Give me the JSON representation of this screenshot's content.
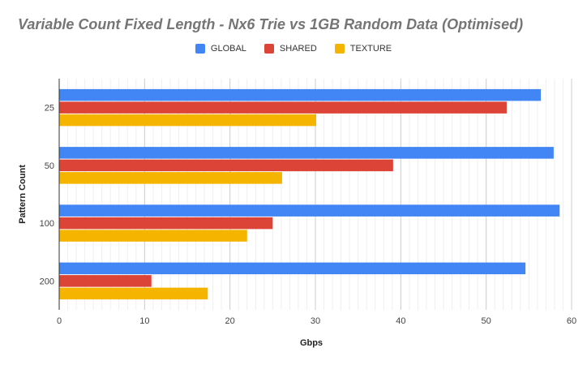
{
  "chart_data": {
    "type": "bar",
    "orientation": "horizontal",
    "title": "Variable Count Fixed Length - Nx6 Trie vs 1GB Random Data (Optimised)",
    "xlabel": "Gbps",
    "ylabel": "Pattern Count",
    "categories": [
      "25",
      "50",
      "100",
      "200"
    ],
    "series": [
      {
        "name": "GLOBAL",
        "color": "#4285f4",
        "values": [
          56.4,
          57.9,
          58.6,
          54.6
        ]
      },
      {
        "name": "SHARED",
        "color": "#db4437",
        "values": [
          52.4,
          39.1,
          25.0,
          10.8
        ]
      },
      {
        "name": "TEXTURE",
        "color": "#f4b400",
        "values": [
          30.1,
          26.1,
          22.0,
          17.4
        ]
      }
    ],
    "xlim": [
      0,
      60
    ],
    "x_ticks": [
      0,
      10,
      20,
      30,
      40,
      50,
      60
    ],
    "legend_position": "top",
    "grid": true
  }
}
